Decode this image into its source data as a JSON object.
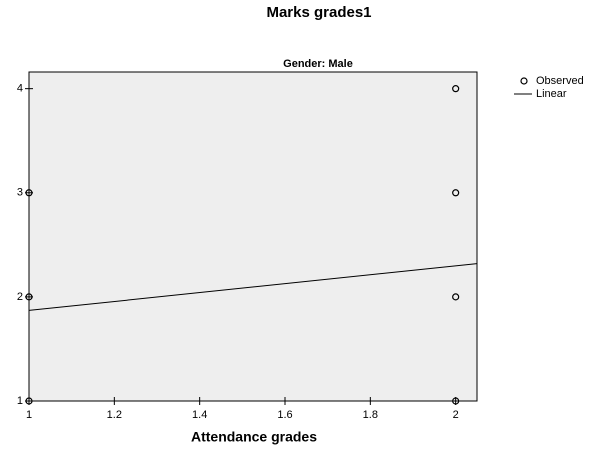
{
  "chart_data": {
    "type": "scatter",
    "title": "Marks grades1",
    "subtitle": "Gender: Male",
    "x_label": "Attendance grades",
    "xlim": [
      1,
      2.05
    ],
    "xticks": [
      1,
      1.2,
      1.4,
      1.6,
      1.8,
      2
    ],
    "ylim": [
      1,
      4.16
    ],
    "yticks": [
      1,
      2,
      3,
      4
    ],
    "legend": "right",
    "series": [
      {
        "name": "Observed",
        "color": "#000000",
        "style": "marker",
        "x": [
          1,
          1,
          1,
          2,
          2,
          2,
          2
        ],
        "values": [
          1,
          2,
          3,
          1,
          2,
          3,
          4
        ]
      },
      {
        "name": "Linear",
        "color": "#000000",
        "style": "line",
        "x": [
          1,
          2.05
        ],
        "values": [
          1.87,
          2.32
        ]
      }
    ]
  }
}
